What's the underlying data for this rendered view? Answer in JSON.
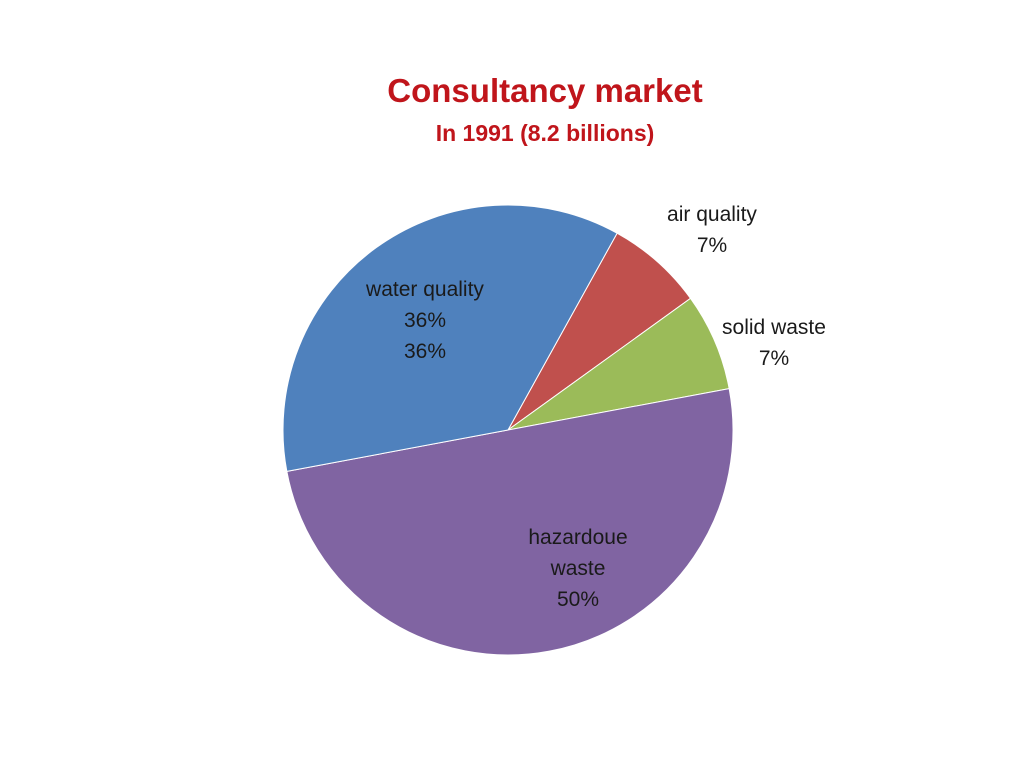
{
  "chart_data": {
    "type": "pie",
    "title": "Consultancy market",
    "subtitle": "In 1991 (8.2 billions)",
    "start_angle_deg": 29,
    "direction": "clockwise",
    "slices": [
      {
        "name": "air quality",
        "value": 7,
        "color": "#c0504d",
        "label_lines": [
          "air quality",
          "7%"
        ]
      },
      {
        "name": "solid waste",
        "value": 7,
        "color": "#9bbb59",
        "label_lines": [
          "solid waste",
          "7%"
        ]
      },
      {
        "name": "hazardoue waste",
        "value": 50,
        "color": "#8064a2",
        "label_lines": [
          "hazardoue",
          "waste",
          "50%"
        ]
      },
      {
        "name": "water quality",
        "value": 36,
        "color": "#4f81bd",
        "label_lines": [
          "water quality",
          "36%",
          "36%"
        ]
      }
    ],
    "legend": "none"
  }
}
